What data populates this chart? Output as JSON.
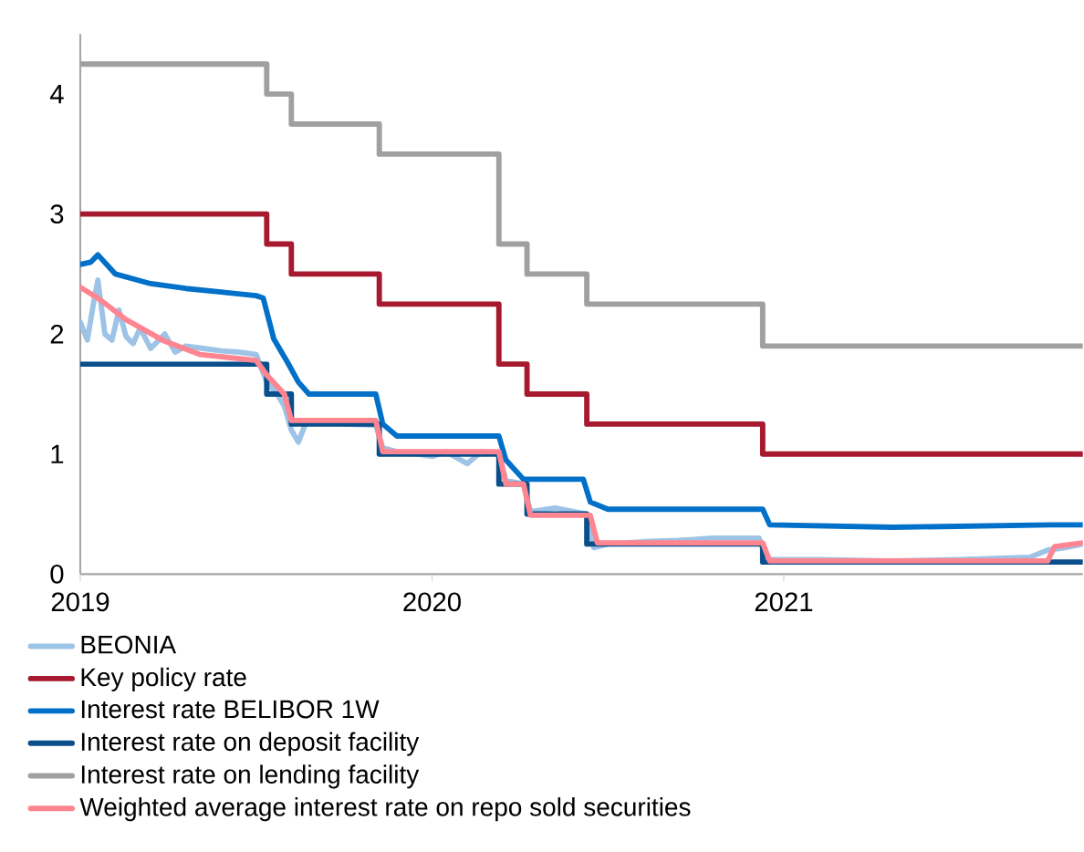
{
  "chart_data": {
    "type": "line",
    "xlim": [
      2019,
      2021.85
    ],
    "ylim": [
      0,
      4.5
    ],
    "xticks": [
      2019,
      2020,
      2021
    ],
    "yticks": [
      0,
      1,
      2,
      3,
      4
    ],
    "legend": "bottom",
    "grid": false,
    "series": [
      {
        "name": "BEONIA",
        "color": "#9dc3e6",
        "x": [
          2019.0,
          2019.02,
          2019.04,
          2019.05,
          2019.07,
          2019.09,
          2019.11,
          2019.13,
          2019.15,
          2019.17,
          2019.2,
          2019.24,
          2019.27,
          2019.3,
          2019.35,
          2019.4,
          2019.45,
          2019.5,
          2019.53,
          2019.56,
          2019.58,
          2019.6,
          2019.62,
          2019.64,
          2019.68,
          2019.75,
          2019.84,
          2019.86,
          2019.9,
          2019.96,
          2020.0,
          2020.04,
          2020.1,
          2020.14,
          2020.19,
          2020.21,
          2020.26,
          2020.28,
          2020.35,
          2020.44,
          2020.46,
          2020.5,
          2020.6,
          2020.7,
          2020.8,
          2020.93,
          2020.95,
          2021.1,
          2021.3,
          2021.5,
          2021.7,
          2021.75,
          2021.8,
          2021.85
        ],
        "values": [
          2.1,
          1.95,
          2.3,
          2.45,
          2.0,
          1.95,
          2.2,
          1.98,
          1.92,
          2.05,
          1.88,
          2.0,
          1.85,
          1.9,
          1.88,
          1.86,
          1.85,
          1.83,
          1.6,
          1.5,
          1.4,
          1.2,
          1.1,
          1.25,
          1.27,
          1.25,
          1.24,
          1.05,
          1.02,
          1.0,
          0.98,
          1.02,
          0.92,
          1.02,
          1.0,
          0.78,
          0.75,
          0.52,
          0.55,
          0.5,
          0.22,
          0.25,
          0.27,
          0.28,
          0.3,
          0.3,
          0.12,
          0.12,
          0.11,
          0.12,
          0.14,
          0.2,
          0.22,
          0.25
        ]
      },
      {
        "name": "Key policy rate",
        "color": "#a6192e",
        "type": "step",
        "x": [
          2019.0,
          2019.53,
          2019.6,
          2019.85,
          2020.19,
          2020.27,
          2020.44,
          2020.94,
          2021.85
        ],
        "values": [
          3.0,
          2.75,
          2.5,
          2.25,
          1.75,
          1.5,
          1.25,
          1.0,
          1.0
        ]
      },
      {
        "name": "Interest rate BELIBOR 1W",
        "color": "#0070c8",
        "x": [
          2019.0,
          2019.03,
          2019.05,
          2019.1,
          2019.2,
          2019.3,
          2019.4,
          2019.5,
          2019.52,
          2019.55,
          2019.59,
          2019.62,
          2019.65,
          2019.84,
          2019.86,
          2019.9,
          2020.19,
          2020.21,
          2020.26,
          2020.43,
          2020.45,
          2020.5,
          2020.94,
          2020.96,
          2021.31,
          2021.76,
          2021.85
        ],
        "values": [
          2.58,
          2.6,
          2.66,
          2.5,
          2.42,
          2.38,
          2.35,
          2.32,
          2.3,
          1.96,
          1.76,
          1.6,
          1.5,
          1.5,
          1.25,
          1.15,
          1.15,
          0.95,
          0.79,
          0.79,
          0.6,
          0.54,
          0.54,
          0.41,
          0.39,
          0.41,
          0.41
        ]
      },
      {
        "name": "Interest rate on deposit facility",
        "color": "#0b4f8a",
        "type": "step",
        "x": [
          2019.0,
          2019.53,
          2019.6,
          2019.85,
          2020.19,
          2020.27,
          2020.44,
          2020.94,
          2021.85
        ],
        "values": [
          1.75,
          1.5,
          1.25,
          1.0,
          0.75,
          0.5,
          0.25,
          0.1,
          0.1
        ]
      },
      {
        "name": "Interest rate on lending facility",
        "color": "#a0a0a0",
        "type": "step",
        "x": [
          2019.0,
          2019.53,
          2019.6,
          2019.85,
          2020.19,
          2020.27,
          2020.44,
          2020.94,
          2021.85
        ],
        "values": [
          4.25,
          4.0,
          3.75,
          3.5,
          2.75,
          2.5,
          2.25,
          1.9,
          1.9
        ]
      },
      {
        "name": "Weighted average interest rate on repo sold securities",
        "color": "#ff8590",
        "x": [
          2019.0,
          2019.05,
          2019.13,
          2019.24,
          2019.34,
          2019.5,
          2019.53,
          2019.58,
          2019.6,
          2019.84,
          2019.86,
          2020.19,
          2020.21,
          2020.26,
          2020.28,
          2020.45,
          2020.47,
          2020.94,
          2020.96,
          2021.75,
          2021.77,
          2021.85
        ],
        "values": [
          2.39,
          2.3,
          2.12,
          1.94,
          1.83,
          1.78,
          1.66,
          1.5,
          1.28,
          1.28,
          1.02,
          1.02,
          0.75,
          0.75,
          0.49,
          0.49,
          0.26,
          0.26,
          0.11,
          0.11,
          0.23,
          0.26
        ]
      }
    ]
  }
}
